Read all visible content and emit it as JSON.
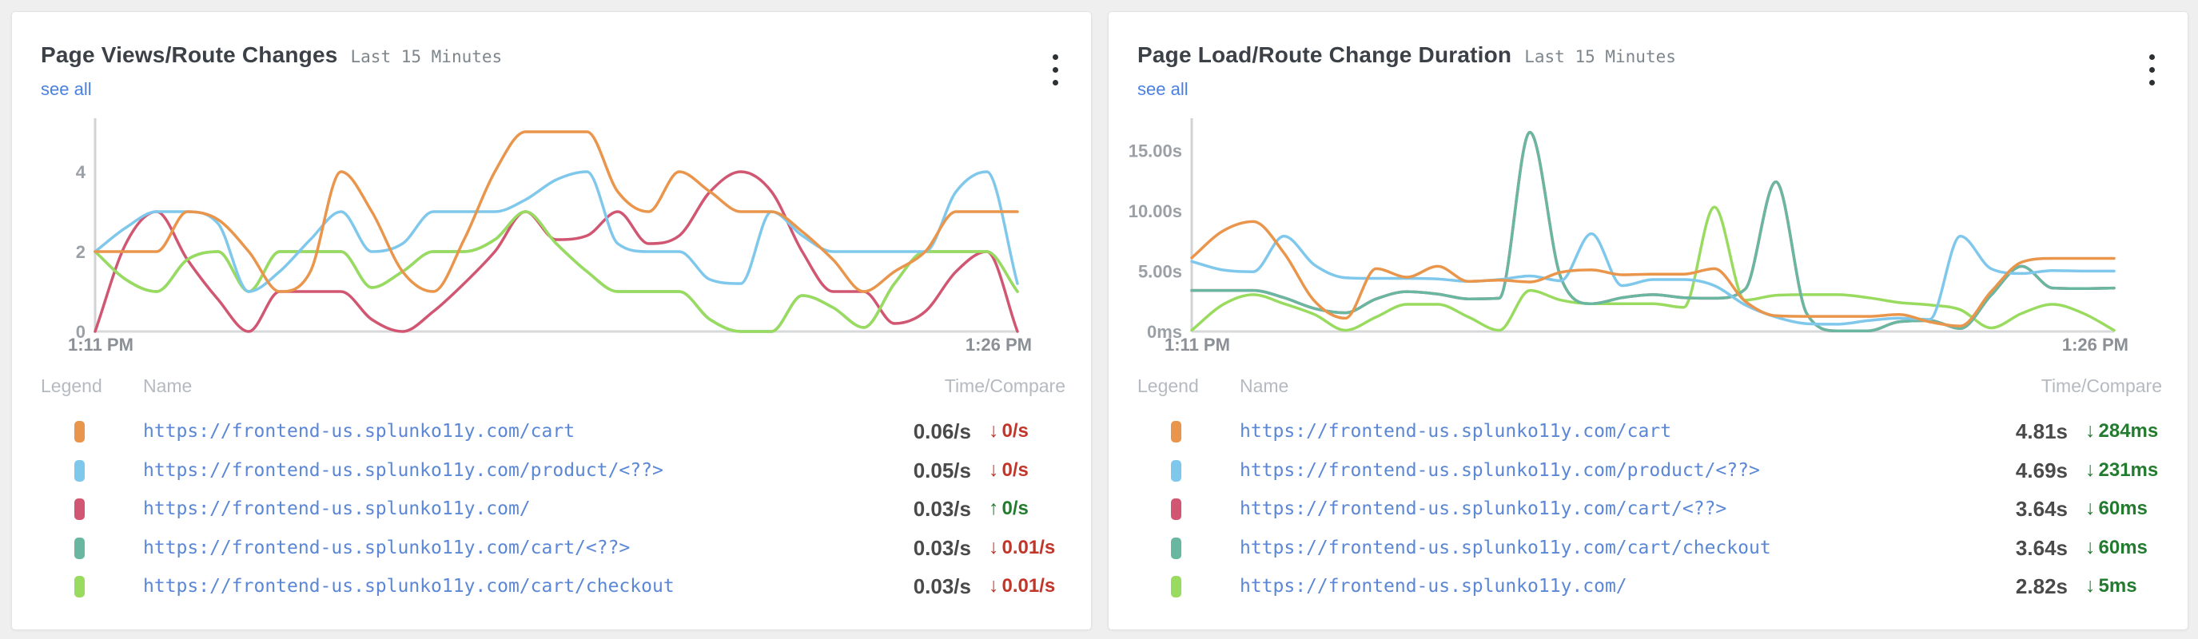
{
  "colors": {
    "orange": "#E9954B",
    "blue": "#7FC8EC",
    "crimson": "#D05672",
    "teal": "#69B7A1",
    "green": "#99DB5F",
    "link": "#4a80e2",
    "url_link": "#5b87d5",
    "value_text": "#4a4a4a",
    "negative": "#C23529",
    "positive": "#237B2F"
  },
  "panels": [
    {
      "chart_index": 0,
      "title": "Page Views/Route Changes",
      "time_range": "Last 15 Minutes",
      "see_all": "see all",
      "kebab_icon": "kebab-menu-icon",
      "legend_headers": {
        "legend": "Legend",
        "name": "Name",
        "time_compare": "Time/Compare"
      },
      "rows": [
        {
          "color": "orange",
          "name": "https://frontend-us.splunko11y.com/cart",
          "value": "0.06/s",
          "arrow": "down",
          "delta": "0/s",
          "trend": "bad"
        },
        {
          "color": "blue",
          "name": "https://frontend-us.splunko11y.com/product/<??>",
          "value": "0.05/s",
          "arrow": "down",
          "delta": "0/s",
          "trend": "bad"
        },
        {
          "color": "crimson",
          "name": "https://frontend-us.splunko11y.com/",
          "value": "0.03/s",
          "arrow": "up",
          "delta": "0/s",
          "trend": "good"
        },
        {
          "color": "teal",
          "name": "https://frontend-us.splunko11y.com/cart/<??>",
          "value": "0.03/s",
          "arrow": "down",
          "delta": "0.01/s",
          "trend": "bad"
        },
        {
          "color": "green",
          "name": "https://frontend-us.splunko11y.com/cart/checkout",
          "value": "0.03/s",
          "arrow": "down",
          "delta": "0.01/s",
          "trend": "bad"
        }
      ]
    },
    {
      "chart_index": 1,
      "title": "Page Load/Route Change Duration",
      "time_range": "Last 15 Minutes",
      "see_all": "see all",
      "kebab_icon": "kebab-menu-icon",
      "legend_headers": {
        "legend": "Legend",
        "name": "Name",
        "time_compare": "Time/Compare"
      },
      "rows": [
        {
          "color": "orange",
          "name": "https://frontend-us.splunko11y.com/cart",
          "value": "4.81s",
          "arrow": "down",
          "delta": "284ms",
          "trend": "good"
        },
        {
          "color": "blue",
          "name": "https://frontend-us.splunko11y.com/product/<??>",
          "value": "4.69s",
          "arrow": "down",
          "delta": "231ms",
          "trend": "good"
        },
        {
          "color": "crimson",
          "name": "https://frontend-us.splunko11y.com/cart/<??>",
          "value": "3.64s",
          "arrow": "down",
          "delta": "60ms",
          "trend": "good"
        },
        {
          "color": "teal",
          "name": "https://frontend-us.splunko11y.com/cart/checkout",
          "value": "3.64s",
          "arrow": "down",
          "delta": "60ms",
          "trend": "good"
        },
        {
          "color": "green",
          "name": "https://frontend-us.splunko11y.com/",
          "value": "2.82s",
          "arrow": "down",
          "delta": "5ms",
          "trend": "good"
        }
      ]
    }
  ],
  "chart_data": [
    {
      "type": "line",
      "title": "Page Views/Route Changes",
      "unit": "page views per minute",
      "x_start": "1:11 PM",
      "x_end": "1:26 PM",
      "x_step_minutes": 0.5,
      "ylim": [
        0,
        5.2
      ],
      "grid": false,
      "legend_position": "table-below",
      "y_ticks": [
        {
          "v": 4,
          "label": "4"
        },
        {
          "v": 2,
          "label": "2"
        },
        {
          "v": 0,
          "label": "0"
        }
      ],
      "series": [
        {
          "name": "https://frontend-us.splunko11y.com/cart/<??>",
          "color": "teal",
          "values": [
            2,
            1.3,
            1,
            1.8,
            2,
            1,
            2,
            2,
            2,
            1.1,
            1.5,
            2,
            2,
            2.3,
            3,
            2.2,
            1.5,
            1,
            1,
            1,
            0.3,
            0,
            0,
            0.9,
            0.6,
            0.1,
            1.2,
            2,
            2,
            2,
            1
          ]
        },
        {
          "name": "https://frontend-us.splunko11y.com/",
          "color": "crimson",
          "values": [
            0,
            2.2,
            3,
            1.8,
            0.8,
            0,
            1,
            1,
            1,
            0.3,
            0,
            0.5,
            1.2,
            2,
            3,
            2.3,
            2.4,
            3,
            2.2,
            2.4,
            3.5,
            4,
            3.5,
            2,
            1,
            1,
            0.2,
            0.5,
            1.5,
            2,
            0
          ]
        },
        {
          "name": "https://frontend-us.splunko11y.com/cart/checkout",
          "color": "green",
          "values": [
            2,
            1.3,
            1,
            1.8,
            2,
            1,
            2,
            2,
            2,
            1.1,
            1.5,
            2,
            2,
            2.3,
            3,
            2.2,
            1.5,
            1,
            1,
            1,
            0.3,
            0,
            0,
            0.9,
            0.6,
            0.1,
            1.2,
            2,
            2,
            2,
            1
          ]
        },
        {
          "name": "https://frontend-us.splunko11y.com/product/<??>",
          "color": "blue",
          "values": [
            2,
            2.6,
            3,
            3,
            2.7,
            1,
            1.5,
            2.3,
            3,
            2,
            2.2,
            3,
            3,
            3,
            3.3,
            3.8,
            4,
            2.2,
            2,
            2,
            1.3,
            1.2,
            3,
            2.4,
            2,
            2,
            2,
            2,
            3.5,
            4,
            1.2
          ]
        },
        {
          "name": "https://frontend-us.splunko11y.com/cart",
          "color": "orange",
          "values": [
            2,
            2,
            2,
            3,
            2.8,
            2,
            1,
            1.5,
            4,
            3,
            1.5,
            1,
            2.3,
            4,
            5,
            5,
            5,
            3.5,
            3,
            4,
            3.5,
            3,
            3,
            2.5,
            1.8,
            1,
            1.5,
            2,
            3,
            3,
            3
          ]
        }
      ]
    },
    {
      "type": "line",
      "title": "Page Load/Route Change Duration",
      "unit": "seconds",
      "x_start": "1:11 PM",
      "x_end": "1:26 PM",
      "x_step_minutes": 0.5,
      "ylim": [
        0,
        17.2
      ],
      "grid": false,
      "legend_position": "table-below",
      "y_ticks": [
        {
          "v": 15,
          "label": "15.00s"
        },
        {
          "v": 10,
          "label": "10.00s"
        },
        {
          "v": 5,
          "label": "5.00s"
        },
        {
          "v": 0,
          "label": "0ms"
        }
      ],
      "series": [
        {
          "name": "https://frontend-us.splunko11y.com/cart/<??>",
          "color": "crimson",
          "values": [
            3.4,
            3.4,
            3.4,
            2.8,
            1.9,
            1.55,
            2.7,
            3.3,
            3.1,
            2.7,
            2.75,
            16.5,
            4.5,
            2.3,
            2.8,
            3.05,
            2.8,
            2.75,
            3.5,
            12.4,
            1.5,
            0.05,
            0.05,
            0.8,
            0.9,
            0.25,
            3.0,
            5.4,
            3.6,
            3.55,
            3.6
          ]
        },
        {
          "name": "https://frontend-us.splunko11y.com/",
          "color": "green",
          "values": [
            0.1,
            2.2,
            3.05,
            2.3,
            1.4,
            0.1,
            1.2,
            2.25,
            2.25,
            1.2,
            0.1,
            3.4,
            2.6,
            2.3,
            2.3,
            2.3,
            2.0,
            10.3,
            2.6,
            3.0,
            3.05,
            3.05,
            2.8,
            2.4,
            2.2,
            1.8,
            0.3,
            1.5,
            2.25,
            1.5,
            0.1
          ]
        },
        {
          "name": "https://frontend-us.splunko11y.com/cart/checkout",
          "color": "teal",
          "values": [
            3.4,
            3.4,
            3.4,
            2.8,
            1.9,
            1.55,
            2.7,
            3.3,
            3.1,
            2.7,
            2.75,
            16.5,
            4.5,
            2.3,
            2.8,
            3.05,
            2.8,
            2.75,
            3.5,
            12.4,
            1.5,
            0.05,
            0.05,
            0.8,
            0.9,
            0.25,
            3.0,
            5.4,
            3.6,
            3.55,
            3.6
          ]
        },
        {
          "name": "https://frontend-us.splunko11y.com/product/<??>",
          "color": "blue",
          "values": [
            5.8,
            5.1,
            4.95,
            7.9,
            5.5,
            4.45,
            4.4,
            4.4,
            4.35,
            4.15,
            4.3,
            4.6,
            4.2,
            8.1,
            3.8,
            4.3,
            4.3,
            3.8,
            2.2,
            1.2,
            0.65,
            0.6,
            0.9,
            1.1,
            1.0,
            7.9,
            5.2,
            4.8,
            5.05,
            5.0,
            5.0
          ]
        },
        {
          "name": "https://frontend-us.splunko11y.com/cart",
          "color": "orange",
          "values": [
            6.1,
            8.3,
            9.1,
            6.5,
            2.5,
            1.1,
            5.2,
            4.5,
            5.4,
            4.15,
            4.25,
            4.1,
            4.9,
            5.1,
            4.7,
            4.75,
            4.75,
            5.2,
            2.5,
            1.3,
            1.25,
            1.25,
            1.25,
            1.4,
            0.8,
            0.45,
            3.3,
            5.75,
            6.05,
            6.05,
            6.05
          ]
        }
      ]
    }
  ]
}
